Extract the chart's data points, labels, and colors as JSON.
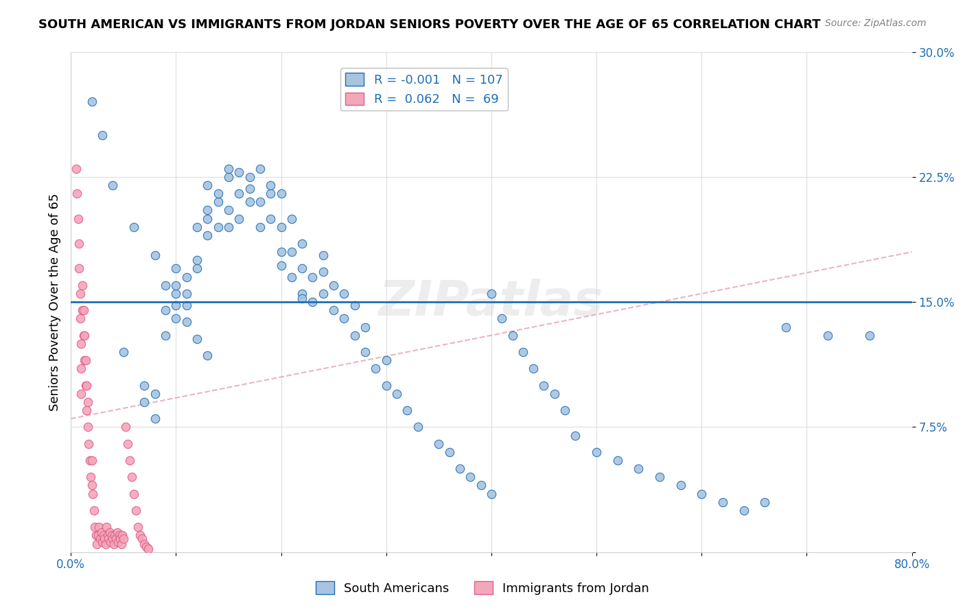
{
  "title": "SOUTH AMERICAN VS IMMIGRANTS FROM JORDAN SENIORS POVERTY OVER THE AGE OF 65 CORRELATION CHART",
  "source": "Source: ZipAtlas.com",
  "xlabel": "",
  "ylabel": "Seniors Poverty Over the Age of 65",
  "xlim": [
    0,
    0.8
  ],
  "ylim": [
    0,
    0.3
  ],
  "yticks": [
    0,
    0.075,
    0.15,
    0.225,
    0.3
  ],
  "ytick_labels": [
    "",
    "7.5%",
    "15.0%",
    "22.5%",
    "30.0%"
  ],
  "xticks": [
    0,
    0.1,
    0.2,
    0.3,
    0.4,
    0.5,
    0.6,
    0.7,
    0.8
  ],
  "xtick_labels": [
    "0.0%",
    "",
    "",
    "",
    "",
    "",
    "",
    "",
    "80.0%"
  ],
  "legend_label1": "South Americans",
  "legend_label2": "Immigrants from Jordan",
  "R1": "-0.001",
  "N1": "107",
  "R2": "0.062",
  "N2": "69",
  "color_blue": "#a8c4e0",
  "color_pink": "#f4a7b9",
  "color_blue_dark": "#1f6eb5",
  "color_pink_dark": "#e05c8a",
  "trend_blue_color": "#1f6eb5",
  "trend_pink_color": "#e8a0b0",
  "hline_y": 0.15,
  "hline_color": "#1f6eb5",
  "watermark": "ZIPatlas",
  "blue_scatter_x": [
    0.05,
    0.07,
    0.07,
    0.08,
    0.08,
    0.09,
    0.09,
    0.1,
    0.1,
    0.1,
    0.1,
    0.11,
    0.11,
    0.11,
    0.12,
    0.12,
    0.12,
    0.13,
    0.13,
    0.13,
    0.13,
    0.14,
    0.14,
    0.14,
    0.15,
    0.15,
    0.15,
    0.15,
    0.16,
    0.16,
    0.16,
    0.17,
    0.17,
    0.17,
    0.18,
    0.18,
    0.18,
    0.19,
    0.19,
    0.19,
    0.2,
    0.2,
    0.2,
    0.21,
    0.21,
    0.21,
    0.22,
    0.22,
    0.22,
    0.23,
    0.23,
    0.24,
    0.24,
    0.24,
    0.25,
    0.25,
    0.26,
    0.26,
    0.27,
    0.27,
    0.28,
    0.28,
    0.29,
    0.3,
    0.3,
    0.31,
    0.32,
    0.33,
    0.35,
    0.36,
    0.37,
    0.38,
    0.39,
    0.4,
    0.4,
    0.41,
    0.42,
    0.43,
    0.44,
    0.45,
    0.46,
    0.47,
    0.48,
    0.5,
    0.52,
    0.54,
    0.56,
    0.58,
    0.6,
    0.62,
    0.64,
    0.66,
    0.68,
    0.72,
    0.76,
    0.02,
    0.03,
    0.04,
    0.06,
    0.08,
    0.09,
    0.1,
    0.11,
    0.12,
    0.13,
    0.2,
    0.22
  ],
  "blue_scatter_y": [
    0.12,
    0.09,
    0.1,
    0.08,
    0.095,
    0.13,
    0.145,
    0.14,
    0.155,
    0.16,
    0.17,
    0.148,
    0.155,
    0.165,
    0.17,
    0.175,
    0.195,
    0.19,
    0.2,
    0.205,
    0.22,
    0.195,
    0.21,
    0.215,
    0.195,
    0.205,
    0.225,
    0.23,
    0.2,
    0.215,
    0.228,
    0.21,
    0.218,
    0.225,
    0.195,
    0.21,
    0.23,
    0.2,
    0.215,
    0.22,
    0.18,
    0.195,
    0.215,
    0.165,
    0.18,
    0.2,
    0.155,
    0.17,
    0.185,
    0.15,
    0.165,
    0.155,
    0.168,
    0.178,
    0.145,
    0.16,
    0.14,
    0.155,
    0.13,
    0.148,
    0.12,
    0.135,
    0.11,
    0.1,
    0.115,
    0.095,
    0.085,
    0.075,
    0.065,
    0.06,
    0.05,
    0.045,
    0.04,
    0.035,
    0.155,
    0.14,
    0.13,
    0.12,
    0.11,
    0.1,
    0.095,
    0.085,
    0.07,
    0.06,
    0.055,
    0.05,
    0.045,
    0.04,
    0.035,
    0.03,
    0.025,
    0.03,
    0.135,
    0.13,
    0.13,
    0.27,
    0.25,
    0.22,
    0.195,
    0.178,
    0.16,
    0.148,
    0.138,
    0.128,
    0.118,
    0.172,
    0.152
  ],
  "pink_scatter_x": [
    0.005,
    0.006,
    0.007,
    0.008,
    0.008,
    0.009,
    0.009,
    0.01,
    0.01,
    0.01,
    0.011,
    0.011,
    0.012,
    0.012,
    0.013,
    0.013,
    0.014,
    0.014,
    0.015,
    0.015,
    0.016,
    0.016,
    0.017,
    0.018,
    0.019,
    0.02,
    0.02,
    0.021,
    0.022,
    0.023,
    0.024,
    0.025,
    0.026,
    0.027,
    0.028,
    0.029,
    0.03,
    0.031,
    0.032,
    0.033,
    0.034,
    0.035,
    0.036,
    0.037,
    0.038,
    0.039,
    0.04,
    0.041,
    0.042,
    0.043,
    0.044,
    0.045,
    0.046,
    0.047,
    0.048,
    0.049,
    0.05,
    0.052,
    0.054,
    0.056,
    0.058,
    0.06,
    0.062,
    0.064,
    0.066,
    0.068,
    0.07,
    0.072,
    0.074
  ],
  "pink_scatter_y": [
    0.23,
    0.215,
    0.2,
    0.185,
    0.17,
    0.155,
    0.14,
    0.125,
    0.11,
    0.095,
    0.145,
    0.16,
    0.13,
    0.145,
    0.115,
    0.13,
    0.1,
    0.115,
    0.085,
    0.1,
    0.075,
    0.09,
    0.065,
    0.055,
    0.045,
    0.04,
    0.055,
    0.035,
    0.025,
    0.015,
    0.01,
    0.005,
    0.01,
    0.015,
    0.008,
    0.012,
    0.006,
    0.01,
    0.008,
    0.005,
    0.015,
    0.01,
    0.008,
    0.012,
    0.006,
    0.01,
    0.008,
    0.005,
    0.01,
    0.008,
    0.012,
    0.006,
    0.01,
    0.008,
    0.005,
    0.01,
    0.008,
    0.075,
    0.065,
    0.055,
    0.045,
    0.035,
    0.025,
    0.015,
    0.01,
    0.008,
    0.005,
    0.003,
    0.002
  ]
}
